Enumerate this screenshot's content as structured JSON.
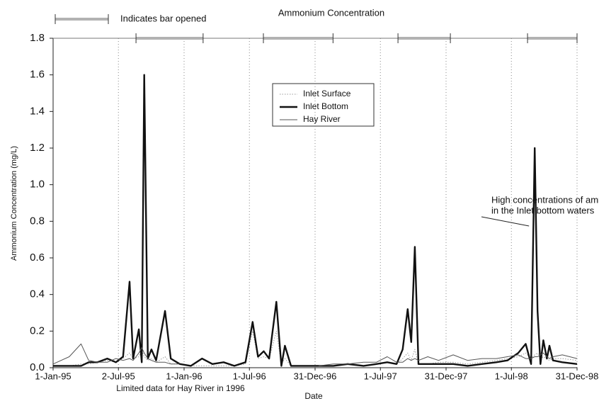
{
  "chart_data": {
    "type": "line",
    "title": "Ammonium Concentration",
    "xlabel": "Date",
    "ylabel": "Ammonium Concentration (mg/L)",
    "bar_opened_label": "Indicates bar opened",
    "bar_opened_periods": [
      [
        "1995-08-20",
        "1996-02-23"
      ],
      [
        "1996-08-09",
        "1997-02-19"
      ],
      [
        "1997-08-19",
        "1998-01-12"
      ],
      [
        "1998-08-15",
        "1998-12-31"
      ]
    ],
    "annotation": [
      "High concentrations of ammonium",
      "in the Inlet bottom waters"
    ],
    "annotation_target": [
      "1998-09-04",
      1.2
    ],
    "note": "Limited data for Hay River in 1996",
    "xlim": [
      "1995-01-01",
      "1998-12-31"
    ],
    "xticks": [
      {
        "value": "1995-01-01",
        "label": "1-Jan-95"
      },
      {
        "value": "1995-07-02",
        "label": "2-Jul-95"
      },
      {
        "value": "1996-01-01",
        "label": "1-Jan-96"
      },
      {
        "value": "1996-07-01",
        "label": "1-Jul-96"
      },
      {
        "value": "1996-12-31",
        "label": "31-Dec-96"
      },
      {
        "value": "1997-07-01",
        "label": "1-Jul-97"
      },
      {
        "value": "1997-12-31",
        "label": "31-Dec-97"
      },
      {
        "value": "1998-07-01",
        "label": "1-Jul-98"
      },
      {
        "value": "1998-12-31",
        "label": "31-Dec-98"
      }
    ],
    "ylim": [
      0,
      1.8
    ],
    "yticks": [
      {
        "value": 0,
        "label": "0.0"
      },
      {
        "value": 0.2,
        "label": "0.2"
      },
      {
        "value": 0.4,
        "label": "0.4"
      },
      {
        "value": 0.6,
        "label": "0.6"
      },
      {
        "value": 0.8,
        "label": "0.8"
      },
      {
        "value": 1,
        "label": "1.0"
      },
      {
        "value": 1.2,
        "label": "1.2"
      },
      {
        "value": 1.4,
        "label": "1.4"
      },
      {
        "value": 1.6,
        "label": "1.6"
      },
      {
        "value": 1.8,
        "label": "1.8"
      }
    ],
    "grid": true,
    "x": [
      "1995-01-01",
      "1995-02-15",
      "1995-03-20",
      "1995-04-10",
      "1995-05-05",
      "1995-06-01",
      "1995-06-25",
      "1995-07-15",
      "1995-08-02",
      "1995-08-12",
      "1995-08-28",
      "1995-09-05",
      "1995-09-12",
      "1995-09-22",
      "1995-10-02",
      "1995-10-15",
      "1995-11-09",
      "1995-11-25",
      "1995-12-20",
      "1996-01-20",
      "1996-02-20",
      "1996-03-20",
      "1996-04-20",
      "1996-05-20",
      "1996-06-20",
      "1996-07-10",
      "1996-07-25",
      "1996-08-10",
      "1996-08-25",
      "1996-09-14",
      "1996-09-28",
      "1996-10-08",
      "1996-10-25",
      "1996-12-01",
      "1997-01-10",
      "1997-02-20",
      "1997-04-01",
      "1997-05-15",
      "1997-06-20",
      "1997-07-20",
      "1997-08-15",
      "1997-09-01",
      "1997-09-15",
      "1997-09-25",
      "1997-10-05",
      "1997-10-15",
      "1997-11-10",
      "1997-12-10",
      "1998-01-20",
      "1998-03-01",
      "1998-04-10",
      "1998-05-20",
      "1998-06-20",
      "1998-07-20",
      "1998-08-10",
      "1998-08-25",
      "1998-09-04",
      "1998-09-12",
      "1998-09-20",
      "1998-09-28",
      "1998-10-08",
      "1998-10-15",
      "1998-10-25",
      "1998-11-20",
      "1998-12-31"
    ],
    "series": [
      {
        "name": "Inlet Surface",
        "color": "#999999",
        "style": "dotted",
        "values": [
          0.01,
          0.01,
          0.02,
          0.02,
          0.03,
          0.04,
          0.03,
          0.05,
          0.08,
          0.05,
          0.06,
          0.1,
          0.06,
          0.04,
          0.05,
          0.03,
          0.06,
          0.02,
          0.02,
          0.01,
          0.01,
          0.01,
          0.01,
          0.01,
          0.02,
          0.2,
          0.05,
          0.06,
          0.05,
          0.2,
          0.02,
          0.05,
          0.01,
          0.01,
          0.01,
          0.01,
          0.02,
          0.01,
          0.02,
          0.03,
          0.02,
          0.05,
          0.08,
          0.04,
          0.1,
          0.02,
          0.02,
          0.03,
          0.03,
          0.02,
          0.03,
          0.04,
          0.05,
          0.06,
          0.08,
          0.05,
          0.07,
          0.08,
          0.05,
          0.06,
          0.05,
          0.04,
          0.05,
          0.05,
          0.04
        ]
      },
      {
        "name": "Inlet Bottom",
        "color": "#111111",
        "style": "bold",
        "values": [
          0.01,
          0.01,
          0.01,
          0.03,
          0.03,
          0.05,
          0.03,
          0.06,
          0.47,
          0.05,
          0.21,
          0.03,
          1.6,
          0.05,
          0.1,
          0.04,
          0.31,
          0.05,
          0.02,
          0.01,
          0.05,
          0.02,
          0.03,
          0.01,
          0.03,
          0.25,
          0.06,
          0.09,
          0.05,
          0.36,
          0.01,
          0.12,
          0.01,
          0.01,
          0.01,
          0.01,
          0.02,
          0.01,
          0.02,
          0.03,
          0.02,
          0.1,
          0.32,
          0.14,
          0.66,
          0.02,
          0.02,
          0.02,
          0.02,
          0.01,
          0.02,
          0.03,
          0.04,
          0.08,
          0.13,
          0.02,
          1.2,
          0.31,
          0.02,
          0.15,
          0.05,
          0.12,
          0.04,
          0.03,
          0.02
        ]
      },
      {
        "name": "Hay River",
        "color": "#555555",
        "style": "thin",
        "values": [
          0.02,
          0.06,
          0.13,
          0.04,
          0.03,
          0.03,
          0.05,
          0.04,
          0.05,
          0.04,
          0.08,
          0.11,
          0.08,
          0.05,
          0.04,
          0.03,
          0.03,
          0.02,
          0.02,
          null,
          null,
          null,
          null,
          null,
          null,
          null,
          null,
          null,
          null,
          null,
          null,
          null,
          null,
          null,
          0.01,
          0.02,
          0.02,
          0.03,
          0.03,
          0.06,
          0.03,
          0.03,
          0.05,
          0.04,
          0.05,
          0.04,
          0.06,
          0.04,
          0.07,
          0.04,
          0.05,
          0.05,
          0.06,
          0.07,
          0.05,
          0.05,
          0.06,
          0.06,
          0.07,
          0.08,
          0.06,
          0.05,
          0.06,
          0.07,
          0.05
        ]
      }
    ]
  }
}
